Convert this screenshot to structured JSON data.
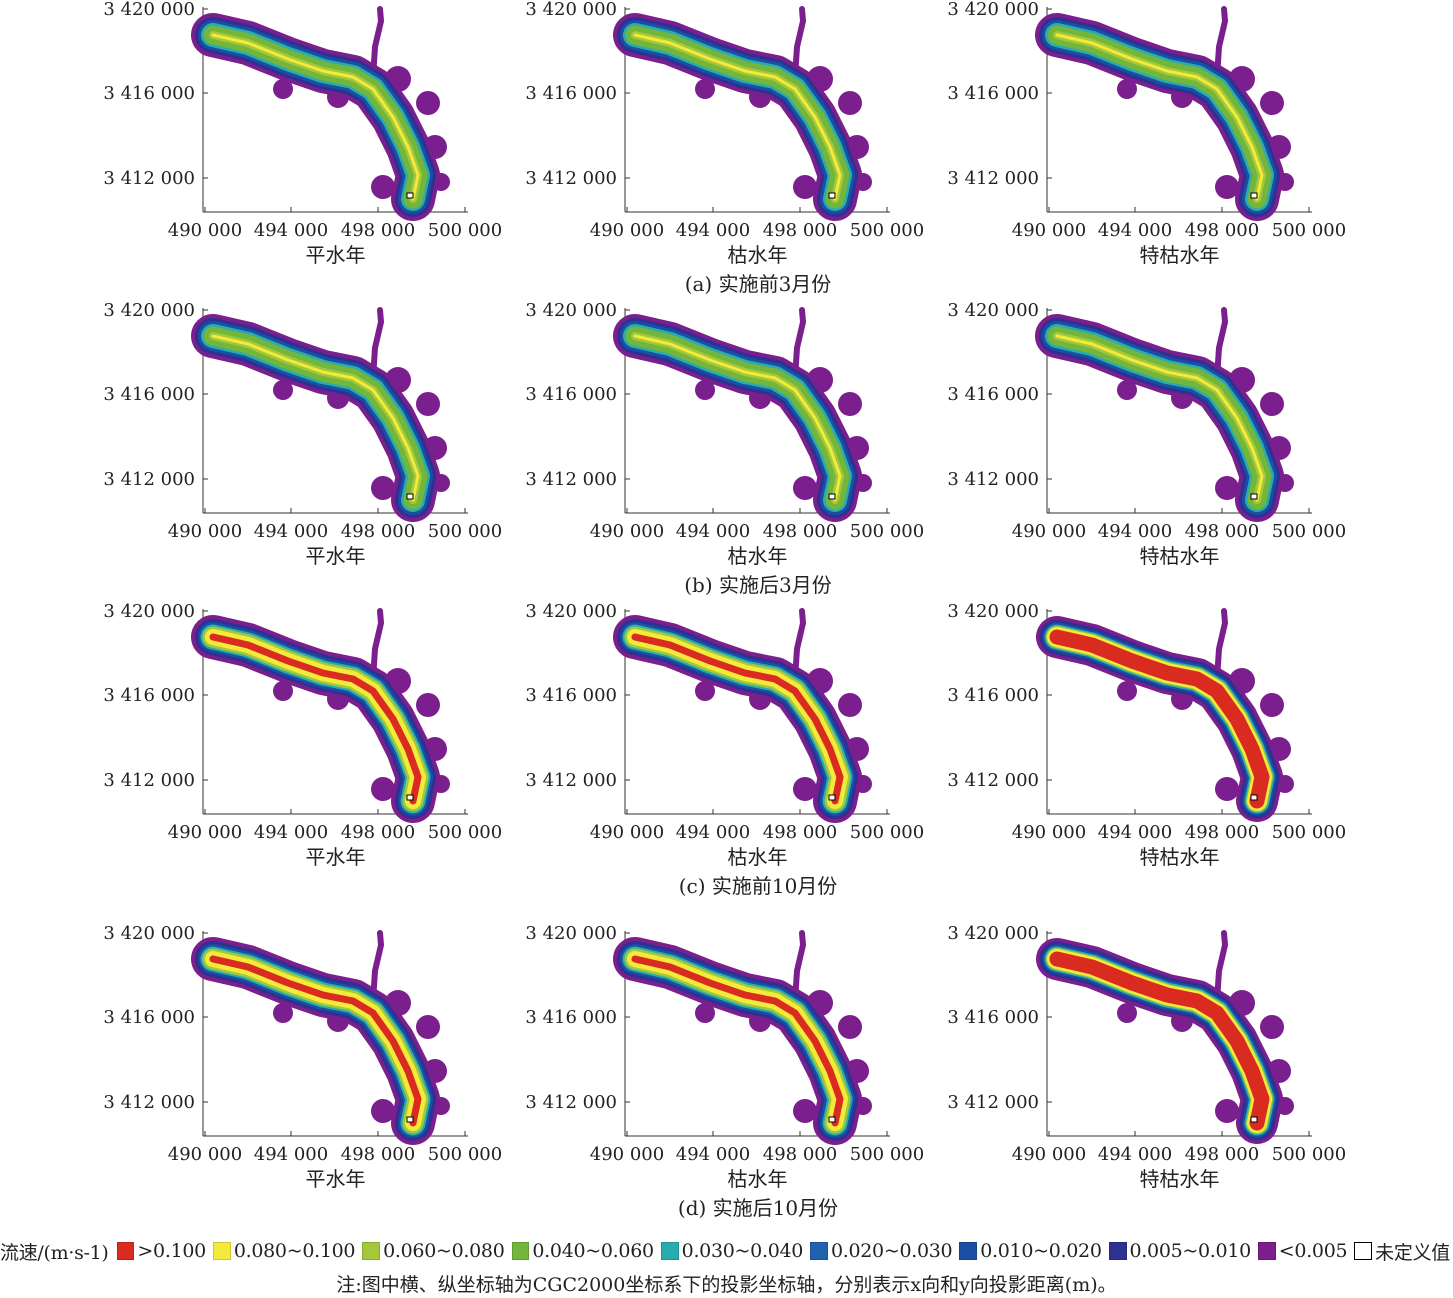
{
  "chart_data": {
    "type": "heatmap",
    "legend": {
      "title": "流速/(m·s-1)",
      "classes": [
        {
          "label": ">0.100",
          "color": "#d92b1f"
        },
        {
          "label": "0.080~0.100",
          "color": "#f4ea3c"
        },
        {
          "label": "0.060~0.080",
          "color": "#a3c93a"
        },
        {
          "label": "0.040~0.060",
          "color": "#74b53c"
        },
        {
          "label": "0.030~0.040",
          "color": "#27adb0"
        },
        {
          "label": "0.020~0.030",
          "color": "#1f63b0"
        },
        {
          "label": "0.010~0.020",
          "color": "#1a4fa3"
        },
        {
          "label": "0.005~0.010",
          "color": "#2e3192"
        },
        {
          "label": "<0.005",
          "color": "#7b1e8e"
        },
        {
          "label": "未定义值",
          "color": "#ffffff"
        }
      ]
    },
    "x_ticks": [
      "490 000",
      "494 000",
      "498 000",
      "500 000"
    ],
    "y_ticks": [
      "3 420 000",
      "3 416 000",
      "3 412 000"
    ],
    "rows": [
      {
        "caption": "(a) 实施前3月份",
        "panels": [
          {
            "subtitle": "平水年",
            "scheme": "green"
          },
          {
            "subtitle": "枯水年",
            "scheme": "green"
          },
          {
            "subtitle": "特枯水年",
            "scheme": "green"
          }
        ]
      },
      {
        "caption": "(b) 实施后3月份",
        "panels": [
          {
            "subtitle": "平水年",
            "scheme": "green"
          },
          {
            "subtitle": "枯水年",
            "scheme": "green"
          },
          {
            "subtitle": "特枯水年",
            "scheme": "green"
          }
        ]
      },
      {
        "caption": "(c) 实施前10月份",
        "panels": [
          {
            "subtitle": "平水年",
            "scheme": "redyellow"
          },
          {
            "subtitle": "枯水年",
            "scheme": "redyellow"
          },
          {
            "subtitle": "特枯水年",
            "scheme": "red"
          }
        ]
      },
      {
        "caption": "(d) 实施后10月份",
        "panels": [
          {
            "subtitle": "平水年",
            "scheme": "redyellow"
          },
          {
            "subtitle": "枯水年",
            "scheme": "redyellow"
          },
          {
            "subtitle": "特枯水年",
            "scheme": "red"
          }
        ]
      }
    ],
    "note": "注:图中横、纵坐标轴为CGC2000坐标系下的投影坐标轴，分别表示x向和y向投影距离(m)。"
  }
}
